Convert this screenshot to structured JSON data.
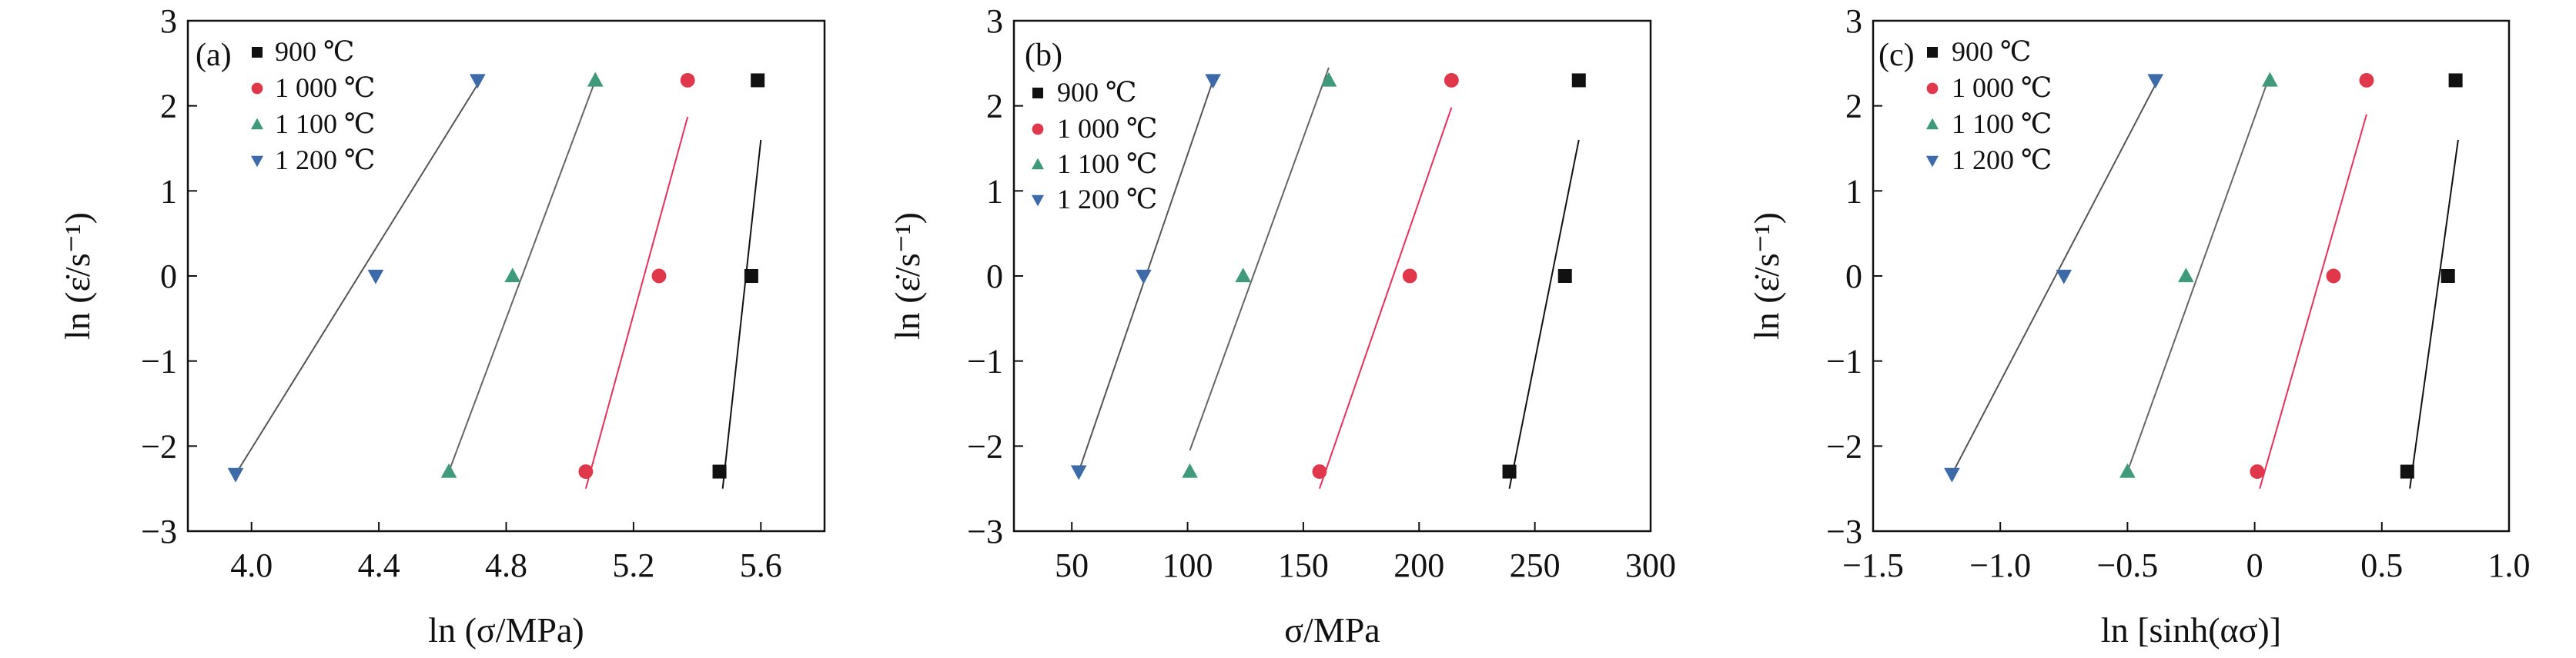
{
  "chart_data": [
    {
      "type": "scatter",
      "panel_label": "(a)",
      "xlabel": "ln (σ/MPa)",
      "ylabel": "ln (ε̇/s⁻¹)",
      "xlim": [
        3.8,
        5.8
      ],
      "ylim": [
        -3,
        3
      ],
      "xticks": [
        4.0,
        4.4,
        4.8,
        5.2,
        5.6
      ],
      "xtick_labels": [
        "4.0",
        "4.4",
        "4.8",
        "5.2",
        "5.6"
      ],
      "yticks": [
        -3,
        -2,
        -1,
        0,
        1,
        2,
        3
      ],
      "ytick_labels": [
        "−3",
        "−2",
        "−1",
        "0",
        "1",
        "2",
        "3"
      ],
      "legend_position": "top-left",
      "series": [
        {
          "name": "900 ℃",
          "marker": "square",
          "color": "#111111",
          "line_color": "#111111",
          "x": [
            5.47,
            5.57,
            5.59
          ],
          "y": [
            -2.3,
            0,
            2.3
          ],
          "fit": [
            [
              5.48,
              -2.5
            ],
            [
              5.6,
              1.6
            ]
          ]
        },
        {
          "name": "1 000 ℃",
          "marker": "circle",
          "color": "#e0384a",
          "line_color": "#e8305c",
          "x": [
            5.05,
            5.28,
            5.37
          ],
          "y": [
            -2.3,
            0,
            2.3
          ],
          "fit": [
            [
              5.05,
              -2.5
            ],
            [
              5.37,
              1.87
            ]
          ]
        },
        {
          "name": "1 100 ℃",
          "marker": "triangle-up",
          "color": "#3f9a7c",
          "line_color": "#666666",
          "x": [
            4.62,
            4.82,
            5.08
          ],
          "y": [
            -2.3,
            0,
            2.3
          ],
          "fit": [
            [
              4.62,
              -2.3
            ],
            [
              5.08,
              2.3
            ]
          ]
        },
        {
          "name": "1 200 ℃",
          "marker": "triangle-down",
          "color": "#3d6aa8",
          "line_color": "#555555",
          "x": [
            3.95,
            4.39,
            4.71
          ],
          "y": [
            -2.33,
            0,
            2.3
          ],
          "fit": [
            [
              3.95,
              -2.33
            ],
            [
              4.71,
              2.25
            ]
          ]
        }
      ]
    },
    {
      "type": "scatter",
      "panel_label": "(b)",
      "xlabel": "σ/MPa",
      "ylabel": "ln (ε̇/s⁻¹)",
      "xlim": [
        25,
        300
      ],
      "ylim": [
        -3,
        3
      ],
      "xticks": [
        50,
        100,
        150,
        200,
        250,
        300
      ],
      "xtick_labels": [
        "50",
        "100",
        "150",
        "200",
        "250",
        "300"
      ],
      "yticks": [
        -3,
        -2,
        -1,
        0,
        1,
        2,
        3
      ],
      "ytick_labels": [
        "−3",
        "−2",
        "−1",
        "0",
        "1",
        "2",
        "3"
      ],
      "legend_position": "top-left",
      "series": [
        {
          "name": "900 ℃",
          "marker": "square",
          "color": "#111111",
          "line_color": "#111111",
          "x": [
            239,
            263,
            269
          ],
          "y": [
            -2.3,
            0,
            2.3
          ],
          "fit": [
            [
              239,
              -2.5
            ],
            [
              269,
              1.6
            ]
          ]
        },
        {
          "name": "1 000 ℃",
          "marker": "circle",
          "color": "#e0384a",
          "line_color": "#e8305c",
          "x": [
            157,
            196,
            214
          ],
          "y": [
            -2.3,
            0,
            2.3
          ],
          "fit": [
            [
              157,
              -2.5
            ],
            [
              214,
              1.98
            ]
          ]
        },
        {
          "name": "1 100 ℃",
          "marker": "triangle-up",
          "color": "#3f9a7c",
          "line_color": "#666666",
          "x": [
            101,
            124,
            161
          ],
          "y": [
            -2.3,
            0,
            2.3
          ],
          "fit": [
            [
              101,
              -2.05
            ],
            [
              161,
              2.45
            ]
          ]
        },
        {
          "name": "1 200 ℃",
          "marker": "triangle-down",
          "color": "#3d6aa8",
          "line_color": "#555555",
          "x": [
            53,
            81,
            111
          ],
          "y": [
            -2.3,
            0,
            2.3
          ],
          "fit": [
            [
              53,
              -2.3
            ],
            [
              111,
              2.3
            ]
          ]
        }
      ]
    },
    {
      "type": "scatter",
      "panel_label": "(c)",
      "xlabel": "ln [sinh(ασ)]",
      "ylabel": "ln (ε̇/s⁻¹)",
      "xlim": [
        -1.5,
        1.0
      ],
      "ylim": [
        -3,
        3
      ],
      "xticks": [
        -1.5,
        -1.0,
        -0.5,
        0,
        0.5,
        1.0
      ],
      "xtick_labels": [
        "−1.5",
        "−1.0",
        "−0.5",
        "0",
        "0.5",
        "1.0"
      ],
      "yticks": [
        -3,
        -2,
        -1,
        0,
        1,
        2,
        3
      ],
      "ytick_labels": [
        "−3",
        "−2",
        "−1",
        "0",
        "1",
        "2",
        "3"
      ],
      "legend_position": "top-left",
      "series": [
        {
          "name": "900 ℃",
          "marker": "square",
          "color": "#111111",
          "line_color": "#111111",
          "x": [
            0.6,
            0.76,
            0.79
          ],
          "y": [
            -2.3,
            0,
            2.3
          ],
          "fit": [
            [
              0.61,
              -2.5
            ],
            [
              0.8,
              1.6
            ]
          ]
        },
        {
          "name": "1 000 ℃",
          "marker": "circle",
          "color": "#e0384a",
          "line_color": "#e8305c",
          "x": [
            0.01,
            0.31,
            0.44
          ],
          "y": [
            -2.3,
            0,
            2.3
          ],
          "fit": [
            [
              0.02,
              -2.5
            ],
            [
              0.44,
              1.9
            ]
          ]
        },
        {
          "name": "1 100 ℃",
          "marker": "triangle-up",
          "color": "#3f9a7c",
          "line_color": "#666666",
          "x": [
            -0.5,
            -0.27,
            0.06
          ],
          "y": [
            -2.3,
            0,
            2.3
          ],
          "fit": [
            [
              -0.5,
              -2.3
            ],
            [
              0.05,
              2.28
            ]
          ]
        },
        {
          "name": "1 200 ℃",
          "marker": "triangle-down",
          "color": "#3d6aa8",
          "line_color": "#555555",
          "x": [
            -1.19,
            -0.75,
            -0.39
          ],
          "y": [
            -2.33,
            0,
            2.3
          ],
          "fit": [
            [
              -1.19,
              -2.33
            ],
            [
              -0.39,
              2.25
            ]
          ]
        }
      ]
    }
  ]
}
